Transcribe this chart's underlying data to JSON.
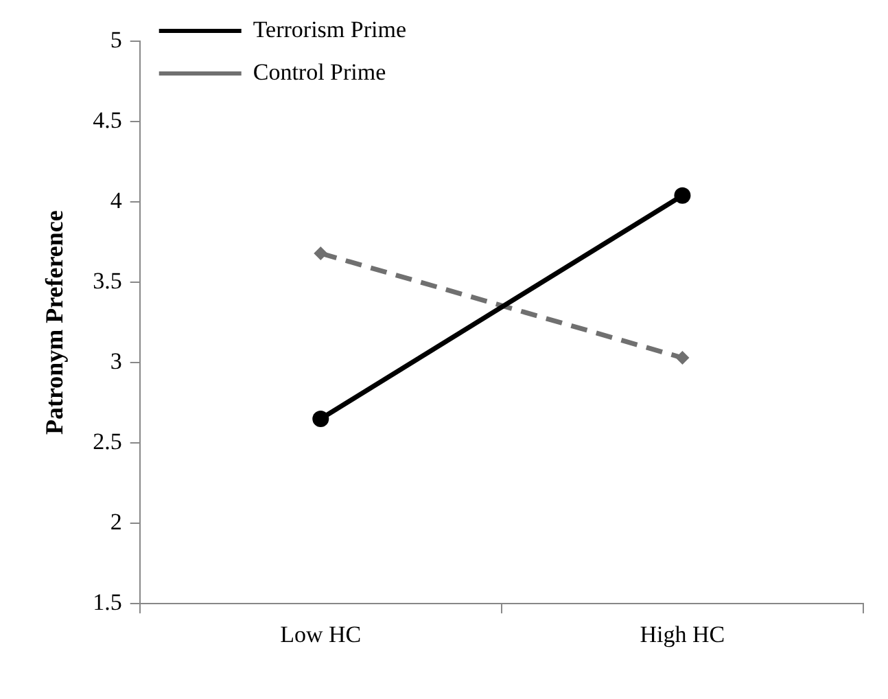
{
  "chart_data": {
    "type": "line",
    "ylabel": "Patronym Preference",
    "categories": [
      "Low HC",
      "High HC"
    ],
    "series": [
      {
        "name": "Terrorism Prime",
        "color": "#000000",
        "values": [
          2.65,
          4.04
        ],
        "marker": "circle",
        "line_style": "solid"
      },
      {
        "name": "Control Prime",
        "color": "#707070",
        "values": [
          3.68,
          3.03
        ],
        "marker": "diamond",
        "line_style": "dashed"
      }
    ],
    "ylim": [
      1.5,
      5
    ],
    "yticks": [
      1.5,
      2,
      2.5,
      3,
      3.5,
      4,
      4.5,
      5
    ],
    "grid": false,
    "legend": "top left"
  }
}
